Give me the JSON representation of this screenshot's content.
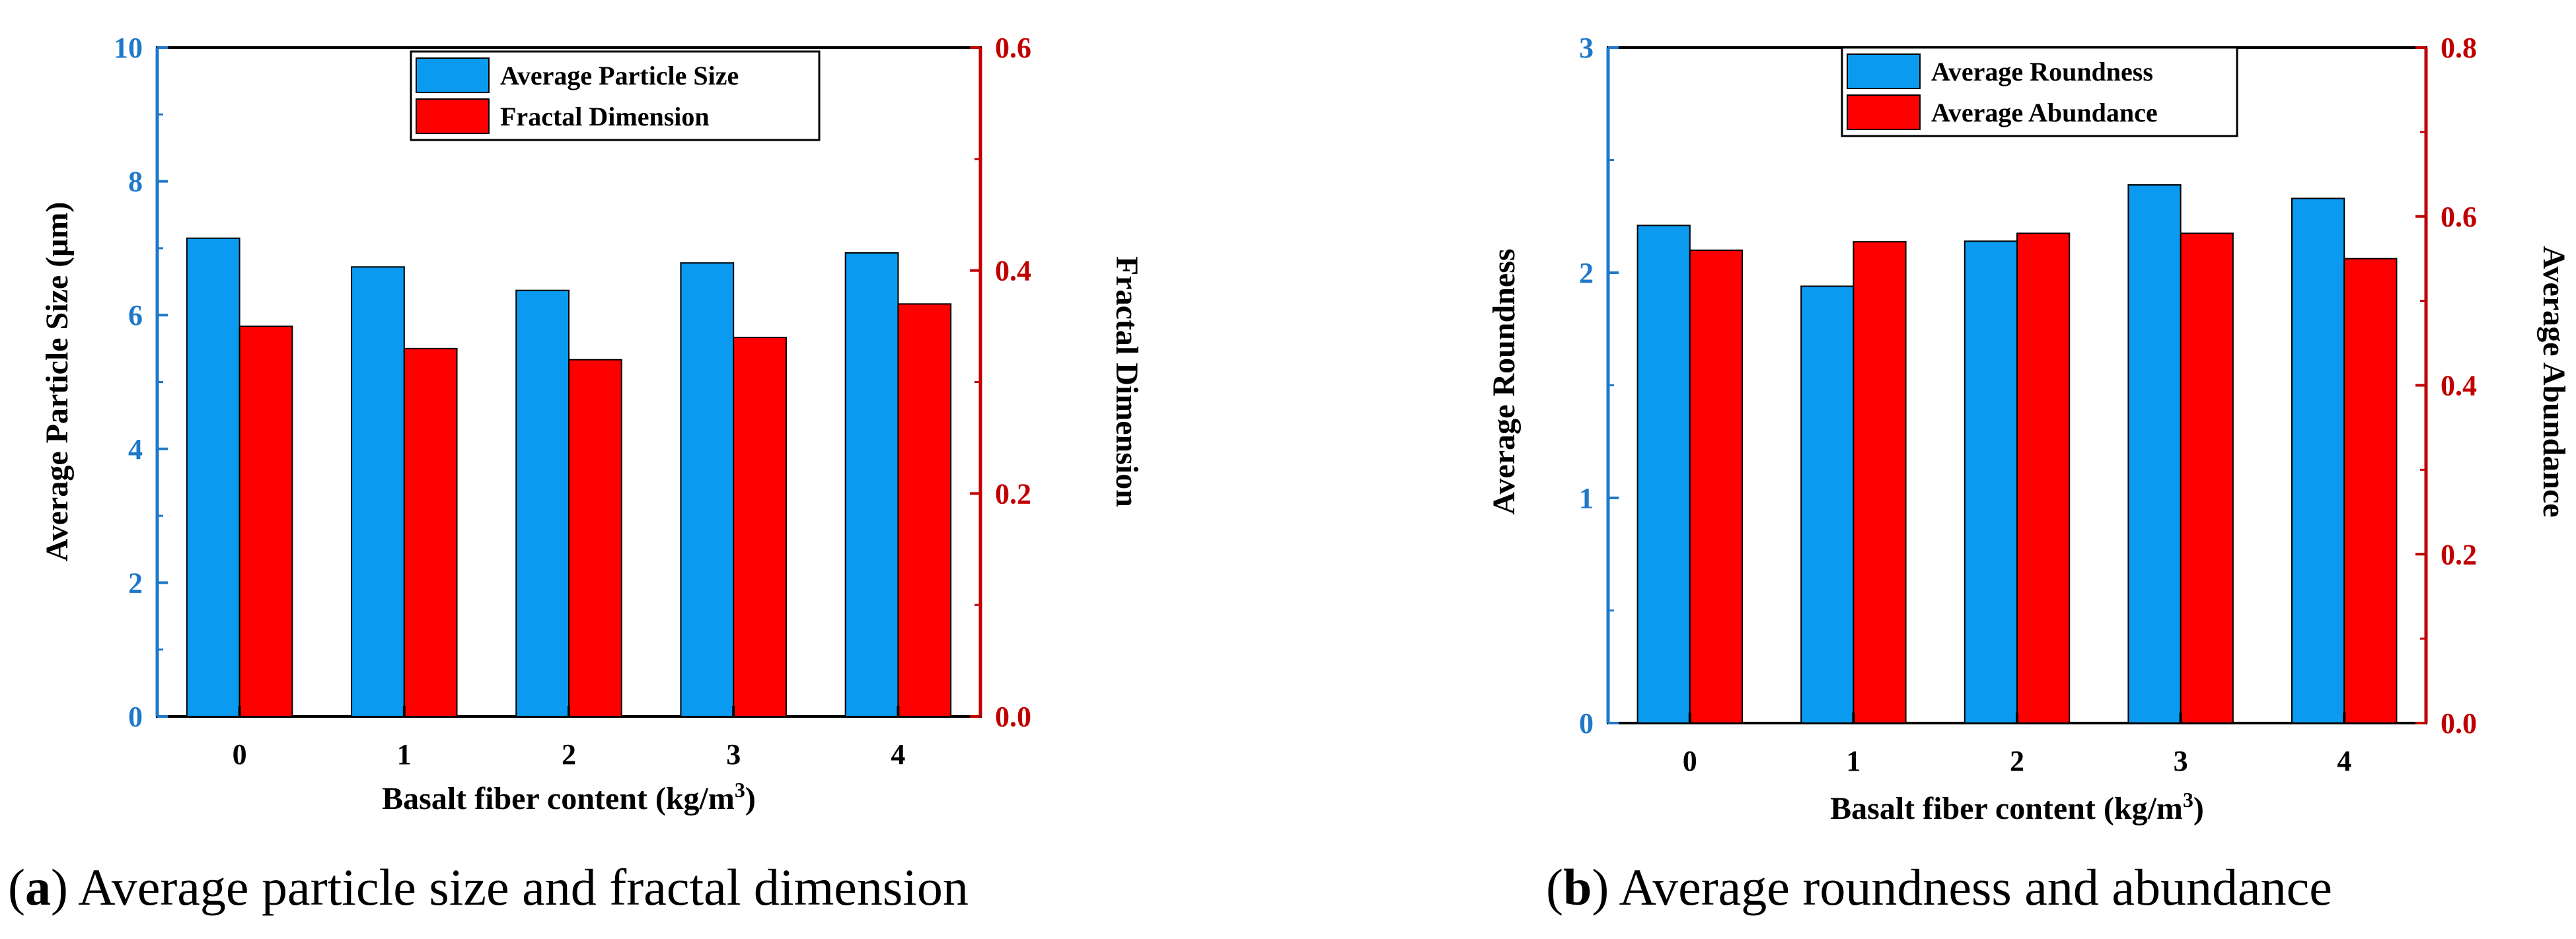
{
  "chart_data": [
    {
      "type": "bar",
      "caption_letter": "a",
      "caption_text": ") Average particle size and fractal dimension",
      "categories": [
        "0",
        "1",
        "2",
        "3",
        "4"
      ],
      "xlabel": "Basalt fiber content (kg/m",
      "xlabel_sup": "3",
      "xlabel_end": ")",
      "ylabel_left": "Average Particle Size (μm)",
      "ylabel_right": "Fractal Dimension",
      "ylim_left": [
        0,
        10
      ],
      "ylim_right": [
        0.0,
        0.6
      ],
      "yticks_left": [
        "0",
        "2",
        "4",
        "6",
        "8",
        "10"
      ],
      "yticks_right": [
        "0.0",
        "0.2",
        "0.4",
        "0.6"
      ],
      "series": [
        {
          "name": "Average Particle Size",
          "axis": "left",
          "color": "#0a9bf0",
          "values": [
            7.15,
            6.72,
            6.37,
            6.78,
            6.93
          ]
        },
        {
          "name": "Fractal Dimension",
          "axis": "right",
          "color": "#ff0000",
          "values": [
            0.35,
            0.33,
            0.32,
            0.34,
            0.37
          ]
        }
      ],
      "legend": "top-center"
    },
    {
      "type": "bar",
      "caption_letter": "b",
      "caption_text": ") Average roundness and abundance",
      "categories": [
        "0",
        "1",
        "2",
        "3",
        "4"
      ],
      "xlabel": "Basalt fiber content (kg/m",
      "xlabel_sup": "3",
      "xlabel_end": ")",
      "ylabel_left": "Average Roundness",
      "ylabel_right": "Average Abundance",
      "ylim_left": [
        0,
        3
      ],
      "ylim_right": [
        0.0,
        0.8
      ],
      "yticks_left": [
        "0",
        "1",
        "2",
        "3"
      ],
      "yticks_right": [
        "0.0",
        "0.2",
        "0.4",
        "0.6",
        "0.8"
      ],
      "series": [
        {
          "name": "Average Roundness",
          "axis": "left",
          "color": "#0a9bf0",
          "values": [
            2.21,
            1.94,
            2.14,
            2.39,
            2.33
          ]
        },
        {
          "name": "Average Abundance",
          "axis": "right",
          "color": "#ff0000",
          "values": [
            0.56,
            0.57,
            0.58,
            0.58,
            0.55
          ]
        }
      ],
      "legend": "top-center"
    }
  ]
}
